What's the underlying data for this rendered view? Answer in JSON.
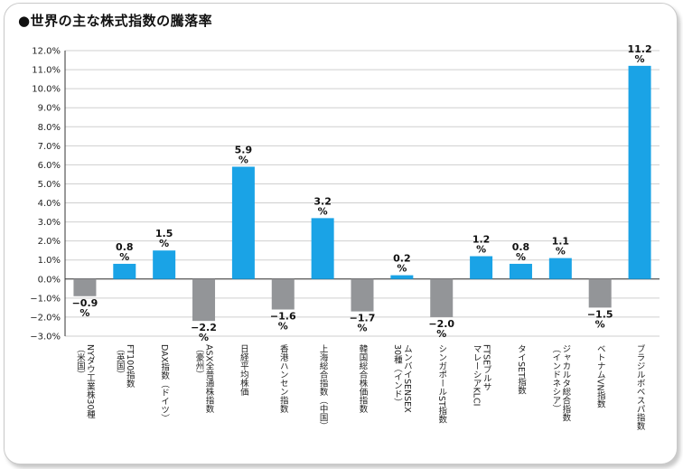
{
  "title": "●世界の主な株式指数の騰落率",
  "chart_data": {
    "type": "bar",
    "title": "●世界の主な株式指数の騰落率",
    "ylim": [
      -3.0,
      12.0
    ],
    "yticks": [
      "12.0%",
      "11.0%",
      "10.0%",
      "9.0%",
      "8.0%",
      "7.0%",
      "6.0%",
      "5.0%",
      "4.0%",
      "3.0%",
      "2.0%",
      "1.0%",
      "0.0%",
      "−1.0%",
      "−2.0%",
      "−3.0%"
    ],
    "categories": [
      [
        "NYダウ工業株30種",
        "（米国）"
      ],
      [
        "FT100指数",
        "（英国）"
      ],
      [
        "DAX指数（ドイツ）"
      ],
      [
        "ASX全普通株指数",
        "（豪州）"
      ],
      [
        "日経平均株価"
      ],
      [
        "香港ハンセン指数"
      ],
      [
        "上海総合指数（中国）"
      ],
      [
        "韓国総合株価指数"
      ],
      [
        "ムンバイSENSEX",
        "30種（インド）"
      ],
      [
        "シンガポールST指数"
      ],
      [
        "FTSEブルサ",
        "マレーシアKLCI"
      ],
      [
        "タイSET指数"
      ],
      [
        "ジャカルタ総合指数",
        "（インドネシア）"
      ],
      [
        "ベトナムVN指数"
      ],
      [
        "ブラジルボベスパ指数"
      ]
    ],
    "values": [
      -0.9,
      0.8,
      1.5,
      -2.2,
      5.9,
      -1.6,
      3.2,
      -1.7,
      0.2,
      -2.0,
      1.2,
      0.8,
      1.1,
      -1.5,
      11.2
    ],
    "value_labels": [
      [
        "−0.9",
        "%"
      ],
      [
        "0.8",
        "%"
      ],
      [
        "1.5",
        "%"
      ],
      [
        "−2.2",
        "%"
      ],
      [
        "5.9",
        "%"
      ],
      [
        "−1.6",
        "%"
      ],
      [
        "3.2",
        "%"
      ],
      [
        "−1.7",
        "%"
      ],
      [
        "0.2",
        "%"
      ],
      [
        "−2.0",
        "%"
      ],
      [
        "1.2",
        "%"
      ],
      [
        "0.8",
        "%"
      ],
      [
        "1.1",
        "%"
      ],
      [
        "−1.5",
        "%"
      ],
      [
        "11.2",
        "%"
      ]
    ],
    "colors": {
      "positive": "#1aa3e6",
      "negative": "#939598",
      "grid": "#cfcfcf",
      "axis": "#333333"
    }
  }
}
